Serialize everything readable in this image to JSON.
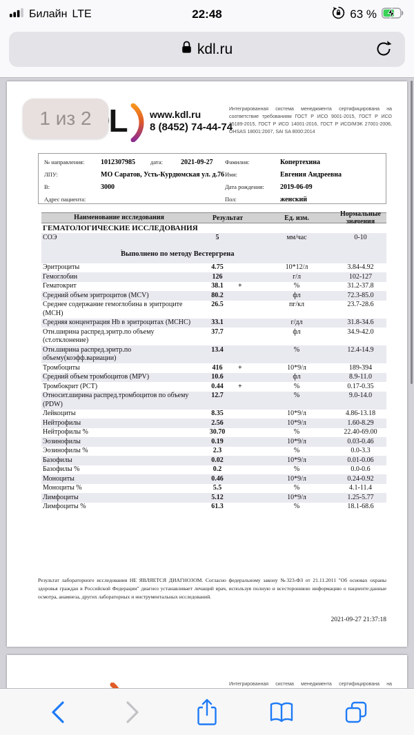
{
  "status_bar": {
    "carrier": "Билайн",
    "network": "LTE",
    "time": "22:48",
    "battery_percent": "63 %"
  },
  "address_bar": {
    "url": "kdl.ru"
  },
  "viewer": {
    "page_indicator": "1 из 2"
  },
  "colors": {
    "ios_blue": "#1e7bf6",
    "battery_green": "#3ad158",
    "zebra": "#e9e9f0",
    "logo_orange": "#f7941e",
    "logo_purple": "#8e2c8e"
  },
  "doc": {
    "logo": {
      "brand": "KDL",
      "site": "www.kdl.ru",
      "phone": "8 (8452) 74-44-74"
    },
    "certification": "Интегрированная система менеджмента сертифицирована на соответствие требованиям ГОСТ Р ИСО 9001-2015, ГОСТ Р ИСО 15189-2015, ГОСТ Р ИСО 14001-2016, ГОСТ Р ИСО/МЭК 27001-2006, OHSAS 18001:2007, SAI SA 8000:2014",
    "patient": {
      "ref_label": "№ направления:",
      "ref": "1012307985",
      "date_label": "дата:",
      "date": "2021-09-27",
      "lpu_label": "ЛПУ:",
      "lpu": "МО Саратов, Усть-Курдюмская ул. д.76",
      "v_label": "В:",
      "v": "3000",
      "addr_label": "Адрес пациента:",
      "addr": "",
      "surname_label": "Фамилия:",
      "surname": "Копертехина",
      "name_label": "Имя:",
      "name": "Евгения Андреевна",
      "birth_label": "Дата рождения:",
      "birth": "2019-06-09",
      "sex_label": "Пол:",
      "sex": "женский"
    },
    "results": {
      "headers": [
        "Наименование исследования",
        "Результат",
        "Ед. изм.",
        "Нормальные значения"
      ],
      "rows": [
        {
          "type": "section",
          "name": "ГЕМАТОЛОГИЧЕСКИЕ ИССЛЕДОВАНИЯ"
        },
        {
          "type": "row",
          "name": "СОЭ",
          "result": "5",
          "flag": "",
          "unit": "мм/час",
          "norm": "0-10"
        },
        {
          "type": "note",
          "name": "Выполнено по методу Вестергрена"
        },
        {
          "type": "row",
          "name": "Эритроциты",
          "result": "4.75",
          "flag": "",
          "unit": "10*12/л",
          "norm": "3.84-4.92"
        },
        {
          "type": "row",
          "name": "Гемоглобин",
          "result": "126",
          "flag": "",
          "unit": "г/л",
          "norm": "102-127"
        },
        {
          "type": "row",
          "name": "Гематокрит",
          "result": "38.1",
          "flag": "+",
          "unit": "%",
          "norm": "31.2-37.8"
        },
        {
          "type": "row",
          "name": "Средний объем эритроцитов (MCV)",
          "result": "80.2",
          "flag": "",
          "unit": "фл",
          "norm": "72.3-85.0"
        },
        {
          "type": "row",
          "name": "Среднее содержание гемоглобина в эритроците (MCH)",
          "result": "26.5",
          "flag": "",
          "unit": "пг/кл",
          "norm": "23.7-28.6"
        },
        {
          "type": "row",
          "name": "Средняя концентрация Hb в эритроцитах (MCHC)",
          "result": "33.1",
          "flag": "",
          "unit": "г/дл",
          "norm": "31.8-34.6"
        },
        {
          "type": "row",
          "name": "Отн.ширина распред.эритр.по объему (ст.отклонение)",
          "result": "37.7",
          "flag": "",
          "unit": "фл",
          "norm": "34.9-42.0"
        },
        {
          "type": "row",
          "name": "Отн.ширина распред.эритр.по объему(коэфф.вариации)",
          "result": "13.4",
          "flag": "",
          "unit": "%",
          "norm": "12.4-14.9"
        },
        {
          "type": "row",
          "name": "Тромбоциты",
          "result": "416",
          "flag": "+",
          "unit": "10*9/л",
          "norm": "189-394"
        },
        {
          "type": "row",
          "name": "Средний объем тромбоцитов (MPV)",
          "result": "10.6",
          "flag": "",
          "unit": "фл",
          "norm": "8.9-11.0"
        },
        {
          "type": "row",
          "name": "Тромбокрит (PCT)",
          "result": "0.44",
          "flag": "+",
          "unit": "%",
          "norm": "0.17-0.35"
        },
        {
          "type": "row",
          "name": "Относит.ширина распред.тромбоцитов по объему (PDW)",
          "result": "12.7",
          "flag": "",
          "unit": "%",
          "norm": "9.0-14.0"
        },
        {
          "type": "row",
          "name": "Лейкоциты",
          "result": "8.35",
          "flag": "",
          "unit": "10*9/л",
          "norm": "4.86-13.18"
        },
        {
          "type": "row",
          "name": "Нейтрофилы",
          "result": "2.56",
          "flag": "",
          "unit": "10*9/л",
          "norm": "1.60-8.29"
        },
        {
          "type": "row",
          "name": "Нейтрофилы %",
          "result": "30.70",
          "flag": "",
          "unit": "%",
          "norm": "22.40-69.00"
        },
        {
          "type": "row",
          "name": "Эозинофилы",
          "result": "0.19",
          "flag": "",
          "unit": "10*9/л",
          "norm": "0.03-0.46"
        },
        {
          "type": "row",
          "name": "Эозинофилы %",
          "result": "2.3",
          "flag": "",
          "unit": "%",
          "norm": "0.0-3.3"
        },
        {
          "type": "row",
          "name": "Базофилы",
          "result": "0.02",
          "flag": "",
          "unit": "10*9/л",
          "norm": "0.01-0.06"
        },
        {
          "type": "row",
          "name": "Базофилы %",
          "result": "0.2",
          "flag": "",
          "unit": "%",
          "norm": "0.0-0.6"
        },
        {
          "type": "row",
          "name": "Моноциты",
          "result": "0.46",
          "flag": "",
          "unit": "10*9/л",
          "norm": "0.24-0.92"
        },
        {
          "type": "row",
          "name": "Моноциты %",
          "result": "5.5",
          "flag": "",
          "unit": "%",
          "norm": "4.1-11.4"
        },
        {
          "type": "row",
          "name": "Лимфоциты",
          "result": "5.12",
          "flag": "",
          "unit": "10*9/л",
          "norm": "1.25-5.77"
        },
        {
          "type": "row",
          "name": "Лимфоциты %",
          "result": "61.3",
          "flag": "",
          "unit": "%",
          "norm": "18.1-68.6"
        }
      ]
    },
    "disclaimer": "Результат лабораторного исследования НЕ ЯВЛЯЕТСЯ ДИАГНОЗОМ. Согласно федеральному закону №323-ФЗ от 21.11.2011 \"Об основах охраны здоровья граждан в Российской Федерации\" диагноз устанавливает лечащий врач, используя полную и всестороннюю информацию о пациенте:данные осмотра, анамнеза, других лабораторных и инструментальных исследований.",
    "timestamp": "2021-09-27 21:37:18"
  }
}
